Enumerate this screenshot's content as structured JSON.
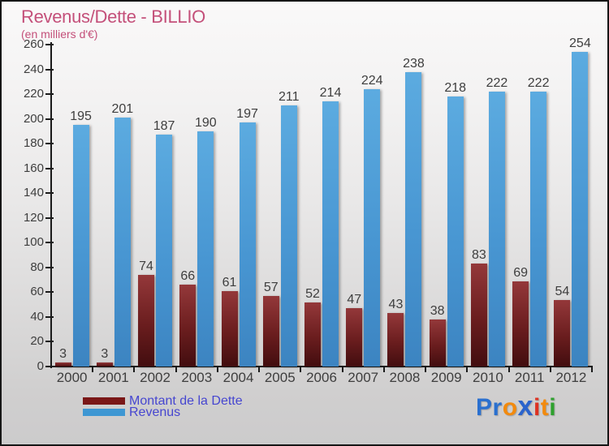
{
  "header": {
    "title": "Revenus/Dette - BILLIO",
    "subtitle": "(en milliers d'€)"
  },
  "chart_data": {
    "type": "bar",
    "title": "Revenus/Dette - BILLIO",
    "subtitle": "(en milliers d'€)",
    "categories": [
      "2000",
      "2001",
      "2002",
      "2003",
      "2004",
      "2005",
      "2006",
      "2007",
      "2008",
      "2009",
      "2010",
      "2011",
      "2012"
    ],
    "series": [
      {
        "name": "Montant de la Dette",
        "values": [
          3,
          3,
          74,
          66,
          61,
          57,
          52,
          47,
          43,
          38,
          83,
          69,
          54
        ],
        "color_top": "#94383a",
        "color_mid": "#6a1d1e",
        "color_bottom": "#420d0f"
      },
      {
        "name": "Revenus",
        "values": [
          195,
          201,
          187,
          190,
          197,
          211,
          214,
          224,
          238,
          218,
          222,
          222,
          254
        ],
        "color_top": "#5cabe0",
        "color_mid": "#4896d2",
        "color_bottom": "#3c84c1"
      }
    ],
    "xlabel": "",
    "ylabel": "",
    "ylim": [
      0,
      260
    ],
    "ytick_step": 20,
    "grid": false,
    "value_labels": true,
    "legend_position": "bottom-left"
  },
  "legend": {
    "items": [
      {
        "label": "Montant de la Dette",
        "color": "#7a1717"
      },
      {
        "label": "Revenus",
        "color": "#3e97d3"
      }
    ]
  },
  "logo": {
    "text": "Proxiti",
    "letters": [
      {
        "ch": "P",
        "color": "#2a70cf",
        "big": false
      },
      {
        "ch": "r",
        "color": "#2a70cf",
        "big": false
      },
      {
        "ch": "o",
        "color": "#f28a0e",
        "big": false
      },
      {
        "ch": "x",
        "color": "#2a63cc",
        "big": true
      },
      {
        "ch": "i",
        "color": "#dd3222",
        "big": false
      },
      {
        "ch": "t",
        "color": "#f28a0e",
        "big": false
      },
      {
        "ch": "i",
        "color": "#2ea12e",
        "big": false
      }
    ]
  },
  "colors": {
    "title": "#c4507a",
    "axis": "#1a1a1a",
    "text": "#3e3e3e",
    "legend_text": "#4646d0"
  }
}
